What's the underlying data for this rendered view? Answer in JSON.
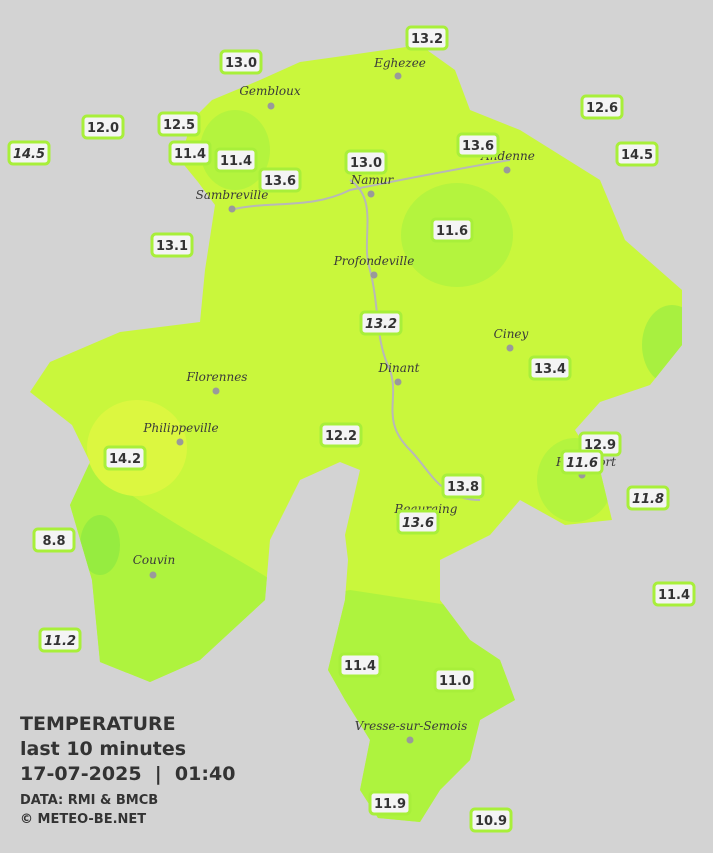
{
  "stations": [
    "13.2",
    "13.0",
    "12.6",
    "12.0",
    "12.5",
    "14.5",
    "11.4",
    "11.4",
    "13.6",
    "13.0",
    "14.5",
    "13.6",
    "11.6",
    "13.1",
    "13.2",
    "13.4",
    "12.2",
    "12.9",
    "14.2",
    "11.6",
    "13.8",
    "11.8",
    "13.6",
    "8.8",
    "11.4",
    "11.2",
    "11.4",
    "11.0",
    "11.9",
    "10.9"
  ],
  "cities": [
    "Eghezee",
    "Gembloux",
    "Sambreville",
    "Namur",
    "Andenne",
    "Profondeville",
    "Ciney",
    "Florennes",
    "Dinant",
    "Philippeville",
    "Couvin",
    "Beauraing",
    "Rochefort",
    "Vresse-sur-Semois"
  ],
  "legend": {
    "title": "TEMPERATURE",
    "period": "last 10 minutes",
    "datetime": "17-07-2025  |  01:40",
    "source": "DATA: RMI & BMCB",
    "credit": "© METEO-BE.NET"
  }
}
